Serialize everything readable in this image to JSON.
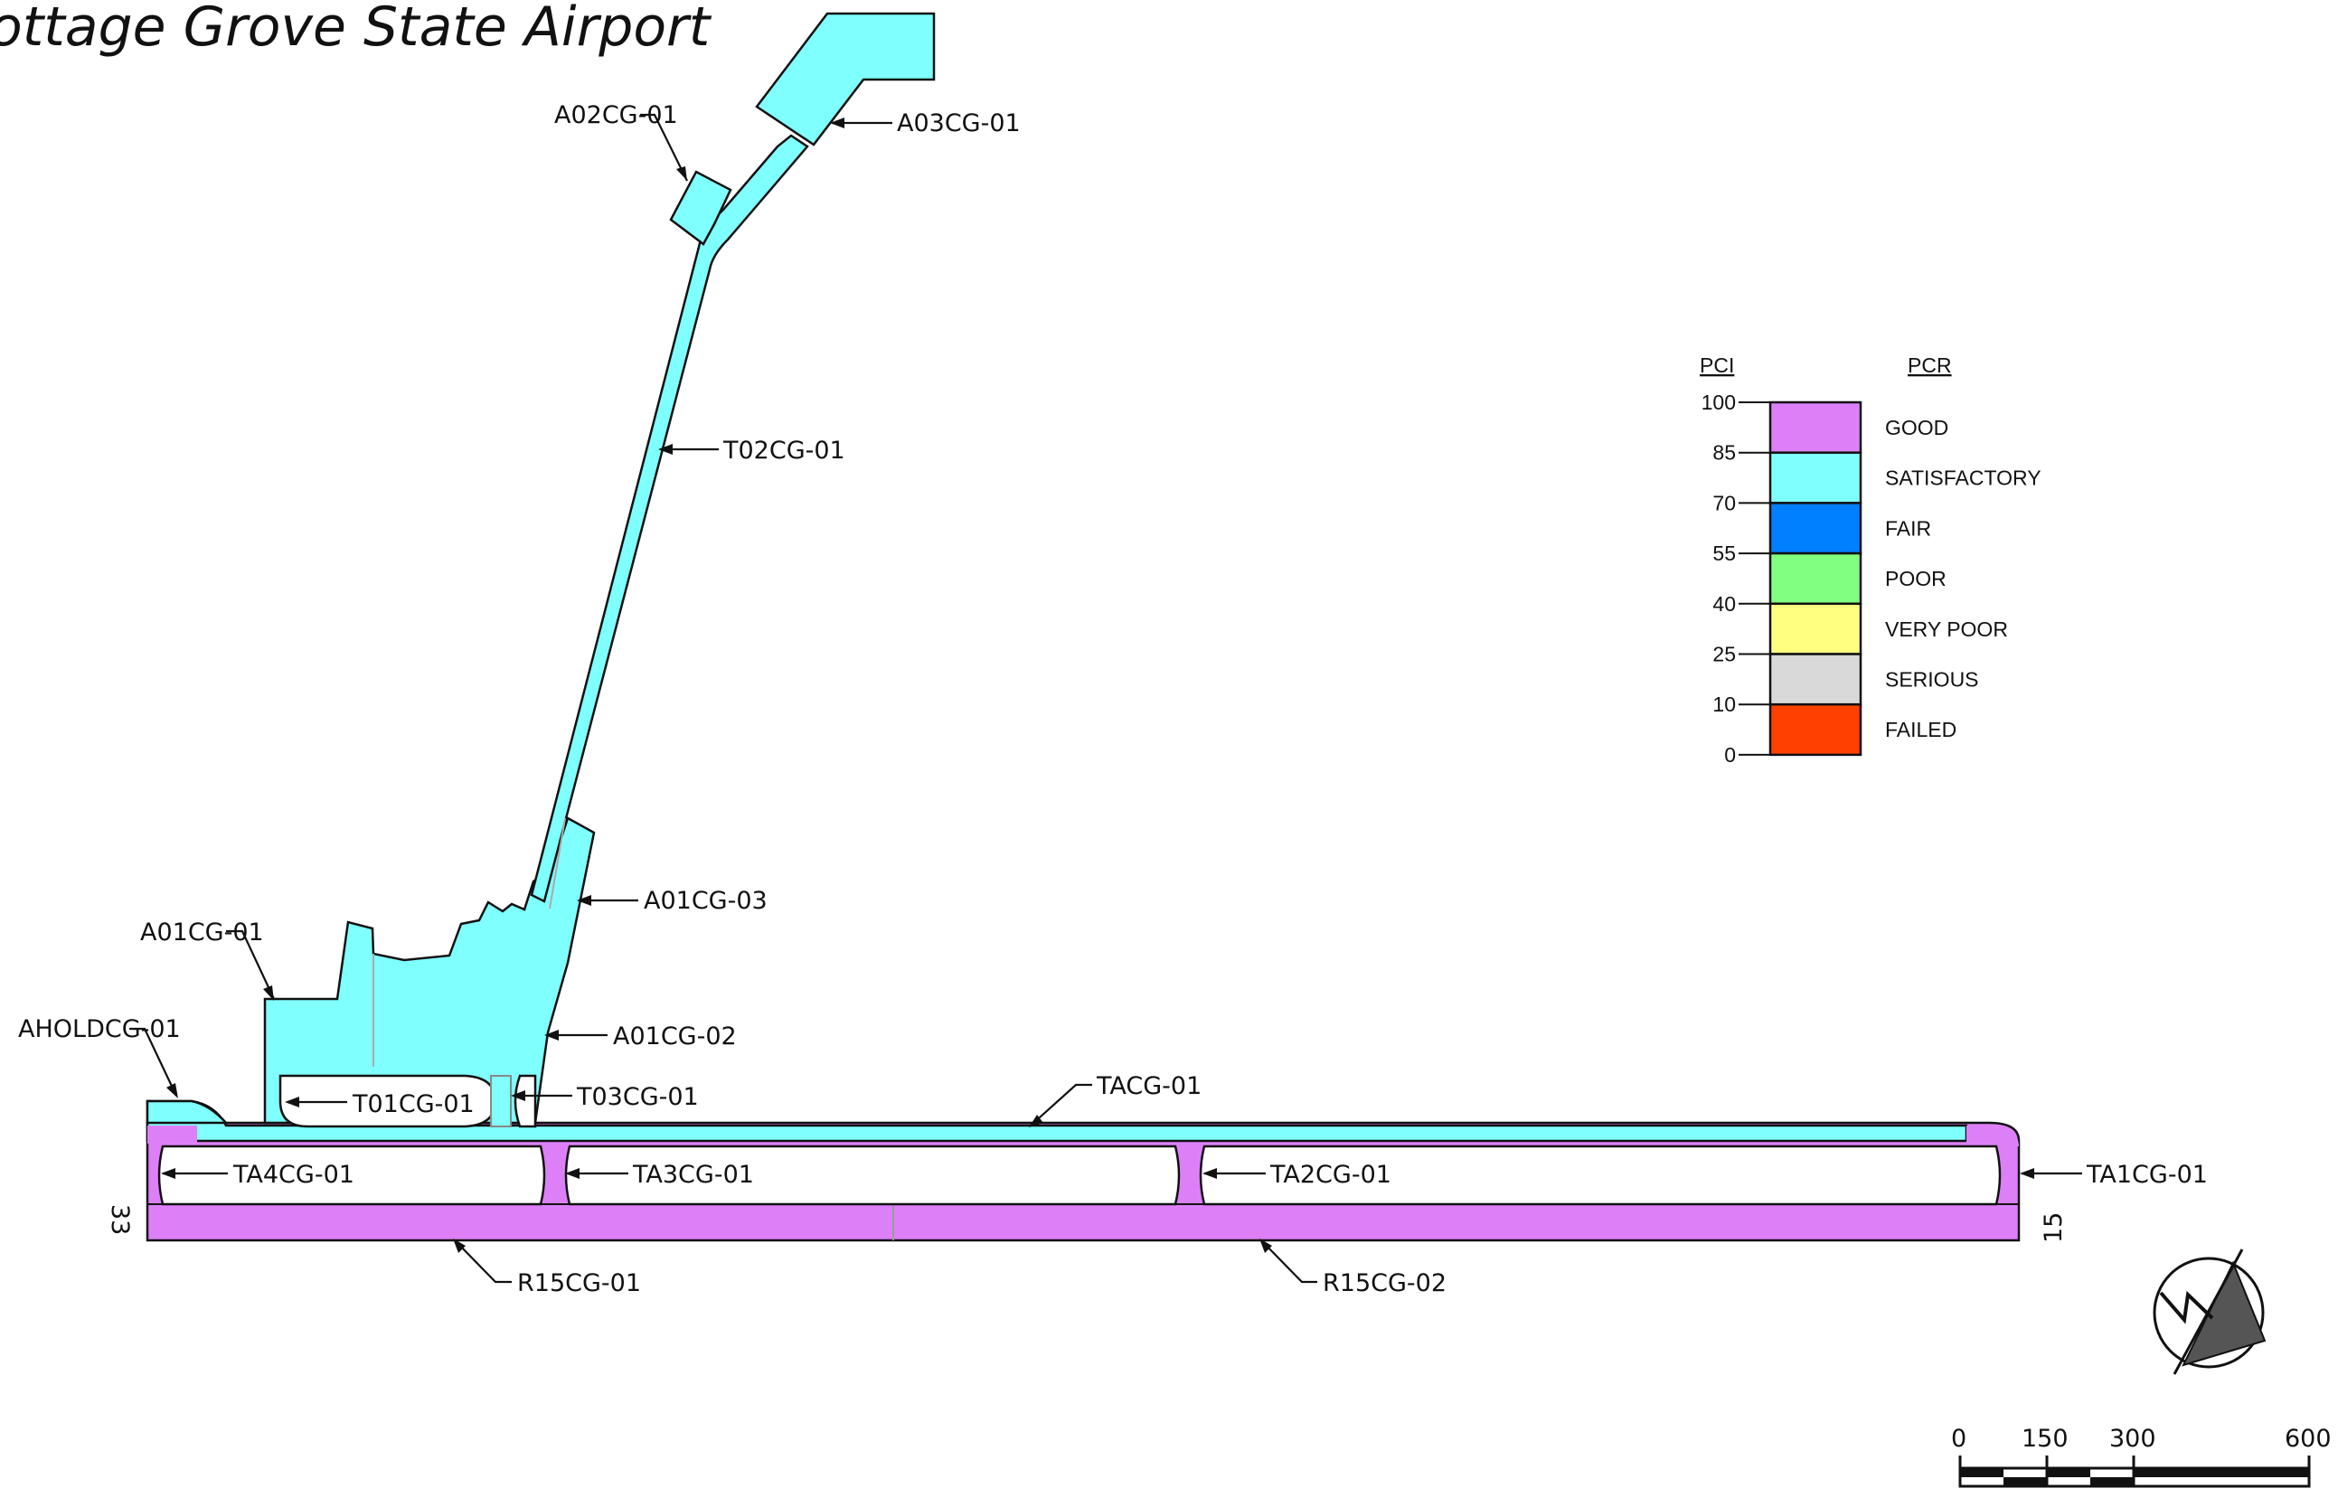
{
  "title": "ottage Grove State Airport",
  "colors": {
    "good": "#dd80f8",
    "satisfactory": "#80ffff",
    "fair": "#0080ff",
    "poor": "#80ff80",
    "very_poor": "#ffff80",
    "serious": "#d9d9d9",
    "failed": "#ff4000"
  },
  "sections": {
    "a02": "A02CG-01",
    "a03": "A03CG-01",
    "t02": "T02CG-01",
    "a01_03": "A01CG-03",
    "a01_01": "A01CG-01",
    "a01_02": "A01CG-02",
    "ahold": "AHOLDCG-01",
    "t01": "T01CG-01",
    "t03": "T03CG-01",
    "tacg": "TACG-01",
    "ta4": "TA4CG-01",
    "ta3": "TA3CG-01",
    "ta2": "TA2CG-01",
    "ta1": "TA1CG-01",
    "r15_01": "R15CG-01",
    "r15_02": "R15CG-02"
  },
  "runway_ends": {
    "west": "33",
    "east": "15"
  },
  "legend": {
    "pci_header": "PCI",
    "pcr_header": "PCR",
    "ticks": [
      "100",
      "85",
      "70",
      "55",
      "40",
      "25",
      "10",
      "0"
    ],
    "ratings": [
      {
        "label": "GOOD",
        "color": "#dd80f8"
      },
      {
        "label": "SATISFACTORY",
        "color": "#80ffff"
      },
      {
        "label": "FAIR",
        "color": "#0080ff"
      },
      {
        "label": "POOR",
        "color": "#80ff80"
      },
      {
        "label": "VERY  POOR",
        "color": "#ffff80"
      },
      {
        "label": "SERIOUS",
        "color": "#d9d9d9"
      },
      {
        "label": "FAILED",
        "color": "#ff4000"
      }
    ]
  },
  "scale_bar": {
    "labels": [
      "0",
      "150",
      "300",
      "600"
    ]
  },
  "icons": {
    "north_arrow": "north-arrow-icon"
  }
}
